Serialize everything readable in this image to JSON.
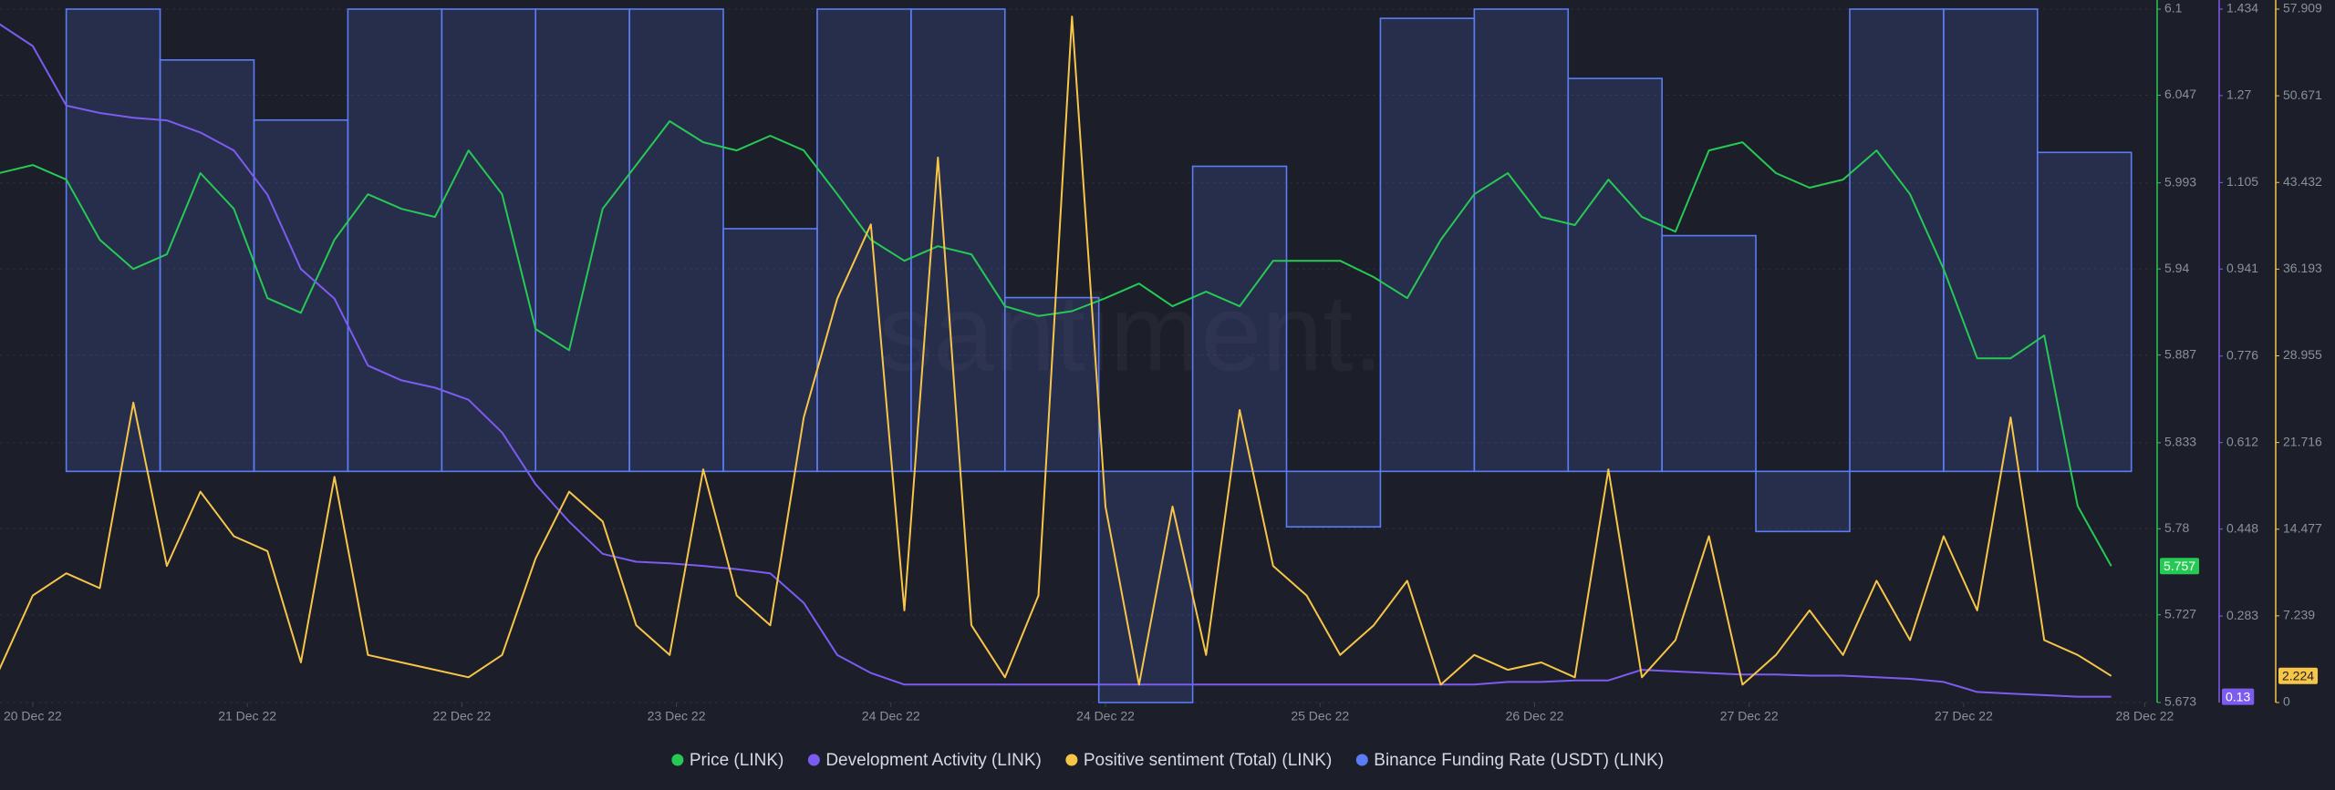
{
  "chart_data": {
    "type": "line",
    "watermark": "santiment.",
    "x": [
      -3,
      0,
      3,
      6,
      9,
      12,
      15,
      18,
      21,
      24,
      27,
      30,
      33,
      36,
      39,
      42,
      45,
      48,
      51,
      54,
      57,
      60,
      63,
      66,
      69,
      72,
      75,
      78,
      81,
      84,
      87,
      90,
      93,
      96,
      99,
      102,
      105,
      108,
      111,
      114,
      117,
      120,
      123,
      126,
      129,
      132,
      135,
      138,
      141,
      144,
      147,
      150,
      153,
      156,
      159,
      162,
      165,
      168,
      171,
      174,
      177,
      180,
      183,
      186
    ],
    "xlim": [
      -2.93,
      189.7
    ],
    "xticks": [
      {
        "value": 0,
        "label": "20 Dec 22"
      },
      {
        "value": 19.2,
        "label": "21 Dec 22"
      },
      {
        "value": 38.4,
        "label": "22 Dec 22"
      },
      {
        "value": 57.6,
        "label": "23 Dec 22"
      },
      {
        "value": 76.8,
        "label": "24 Dec 22"
      },
      {
        "value": 96,
        "label": "24 Dec 22"
      },
      {
        "value": 115.2,
        "label": "25 Dec 22"
      },
      {
        "value": 134.4,
        "label": "26 Dec 22"
      },
      {
        "value": 153.6,
        "label": "27 Dec 22"
      },
      {
        "value": 172.8,
        "label": "27 Dec 22"
      },
      {
        "value": 189,
        "label": "28 Dec 22"
      }
    ],
    "ylim": [
      5.673,
      6.1
    ],
    "yticks": [
      6.1,
      6.047,
      5.993,
      5.94,
      5.887,
      5.833,
      5.78,
      5.727,
      5.673
    ],
    "y2lim": [
      0.119,
      1.434
    ],
    "y2ticks": [
      1.434,
      1.27,
      1.105,
      0.941,
      0.776,
      0.612,
      0.448,
      0.283
    ],
    "y3lim": [
      0,
      57.909
    ],
    "y3ticks": [
      57.909,
      50.671,
      43.432,
      36.193,
      28.955,
      21.716,
      14.477,
      7.239,
      0
    ],
    "y4lim": [
      -0.005,
      0.01
    ],
    "grid": true,
    "legend": "bottom",
    "series": [
      {
        "name": "Price (LINK)",
        "color": "#26c953",
        "axis": "y",
        "values": [
          5.999,
          6.004,
          5.995,
          5.958,
          5.94,
          5.949,
          5.999,
          5.977,
          5.922,
          5.913,
          5.958,
          5.986,
          5.977,
          5.972,
          6.013,
          5.986,
          5.903,
          5.89,
          5.977,
          6.004,
          6.031,
          6.018,
          6.013,
          6.022,
          6.013,
          5.986,
          5.958,
          5.945,
          5.954,
          5.949,
          5.917,
          5.911,
          5.914,
          5.922,
          5.931,
          5.917,
          5.926,
          5.917,
          5.945,
          5.945,
          5.945,
          5.935,
          5.922,
          5.958,
          5.986,
          5.999,
          5.972,
          5.967,
          5.995,
          5.972,
          5.963,
          6.013,
          6.018,
          5.999,
          5.99,
          5.995,
          6.013,
          5.986,
          5.94,
          5.885,
          5.885,
          5.899,
          5.794,
          5.757
        ]
      },
      {
        "name": "Development Activity (LINK)",
        "color": "#7c5cf0",
        "axis": "y2",
        "values": [
          1.406,
          1.364,
          1.251,
          1.237,
          1.228,
          1.223,
          1.2,
          1.166,
          1.082,
          0.941,
          0.885,
          0.758,
          0.73,
          0.716,
          0.693,
          0.631,
          0.533,
          0.462,
          0.401,
          0.386,
          0.383,
          0.378,
          0.372,
          0.364,
          0.308,
          0.209,
          0.175,
          0.153,
          0.153,
          0.153,
          0.153,
          0.153,
          0.153,
          0.153,
          0.153,
          0.153,
          0.153,
          0.153,
          0.153,
          0.153,
          0.153,
          0.153,
          0.153,
          0.153,
          0.153,
          0.158,
          0.158,
          0.161,
          0.161,
          0.181,
          0.178,
          0.175,
          0.172,
          0.172,
          0.17,
          0.17,
          0.167,
          0.164,
          0.158,
          0.139,
          0.136,
          0.133,
          0.13,
          0.13
        ]
      },
      {
        "name": "Positive sentiment (Total) (LINK)",
        "color": "#f7c548",
        "axis": "y3",
        "values": [
          2.73,
          8.93,
          10.79,
          9.55,
          25.05,
          11.41,
          17.61,
          13.89,
          12.65,
          3.35,
          18.85,
          3.97,
          3.35,
          2.73,
          2.11,
          3.97,
          12.03,
          17.61,
          15.13,
          6.45,
          3.97,
          19.47,
          8.93,
          6.45,
          23.81,
          33.73,
          39.93,
          7.69,
          45.51,
          6.45,
          2.11,
          8.93,
          57.29,
          16.37,
          1.49,
          16.37,
          3.97,
          24.43,
          11.41,
          8.93,
          3.97,
          6.45,
          10.17,
          1.49,
          3.97,
          2.73,
          3.35,
          2.11,
          19.47,
          2.11,
          5.21,
          13.89,
          1.49,
          3.97,
          7.69,
          3.97,
          10.17,
          5.21,
          13.89,
          7.69,
          23.81,
          5.21,
          3.97,
          2.224
        ]
      },
      {
        "name": "Binance Funding Rate (USDT) (LINK)",
        "color": "#5b7cf5",
        "axis": "y4",
        "step": true,
        "x": [
          3,
          11.4,
          19.8,
          28.2,
          36.6,
          45,
          53.4,
          61.8,
          70.2,
          78.6,
          87,
          95.4,
          103.8,
          112.2,
          120.6,
          129,
          137.4,
          145.8,
          154.2,
          162.6,
          171,
          179.4
        ],
        "values": [
          0.01,
          0.0089,
          0.0076,
          0.01,
          0.01,
          0.01,
          0.01,
          0.00525,
          0.01,
          0.01,
          0.00376,
          -0.005,
          0.0066,
          -0.0012,
          0.0098,
          0.01,
          0.0085,
          0.0051,
          -0.0013,
          0.01,
          0.01,
          0.0069
        ]
      }
    ]
  }
}
